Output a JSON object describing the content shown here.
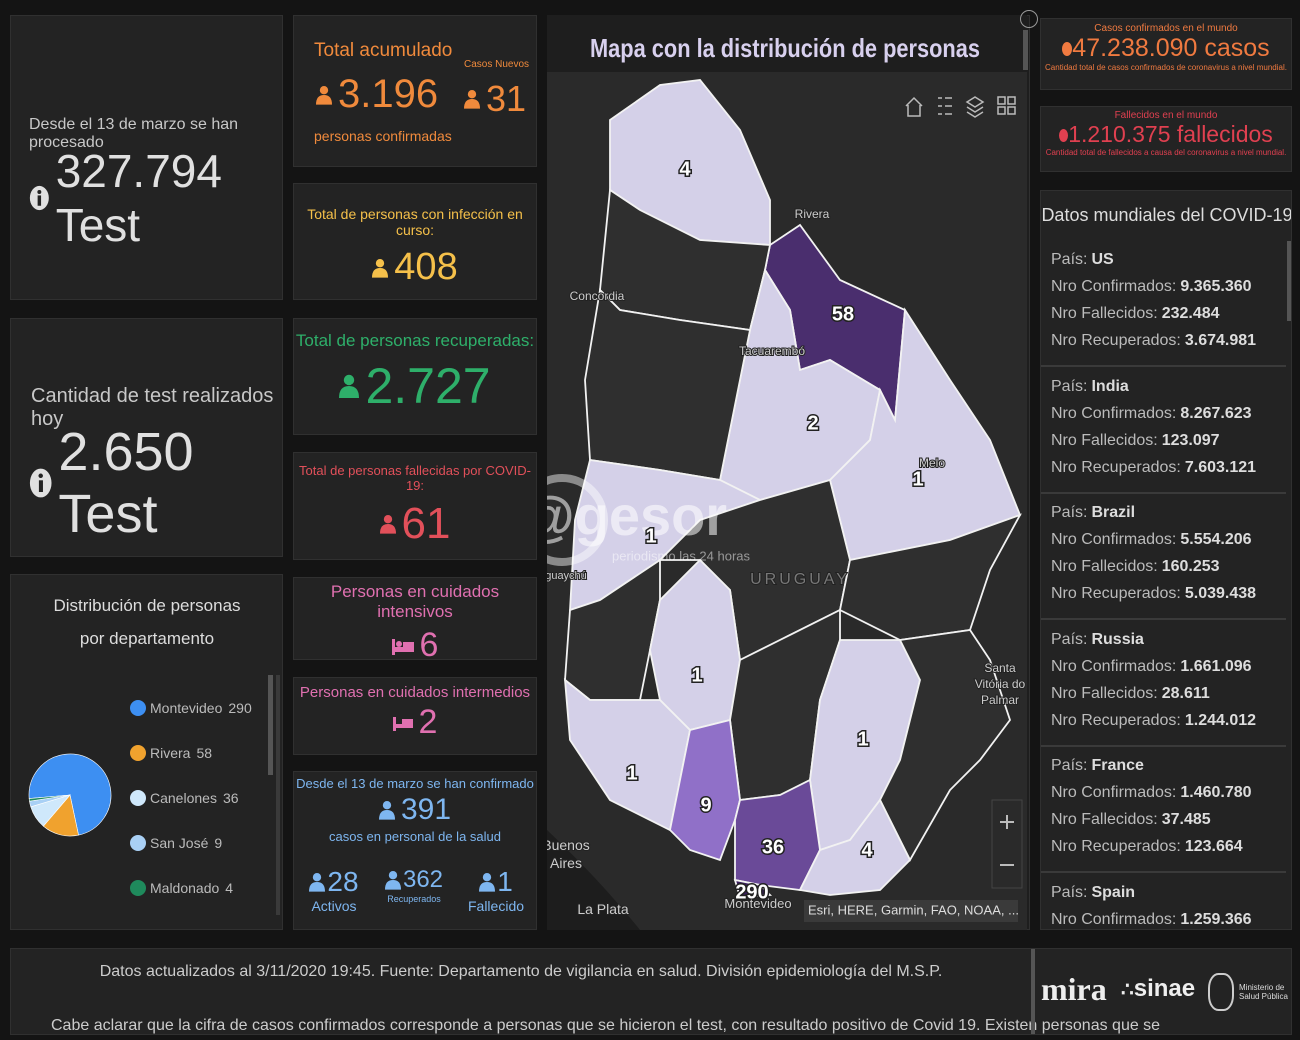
{
  "tests": {
    "caption": "Desde el 13 de marzo se han procesado",
    "value": "327.794 Test"
  },
  "today": {
    "caption": "Cantidad de test realizados hoy",
    "value": "2.650 Test"
  },
  "pie": {
    "title": "Distribución de personas por departamento",
    "items": [
      {
        "name": "Montevideo",
        "value": 290,
        "color": "#3d8ff2"
      },
      {
        "name": "Rivera",
        "value": 58,
        "color": "#f0a22e"
      },
      {
        "name": "Canelones",
        "value": 36,
        "color": "#cfe8fb"
      },
      {
        "name": "San José",
        "value": 9,
        "color": "#a9d0f5"
      },
      {
        "name": "Maldonado",
        "value": 4,
        "color": "#1f8a5c"
      }
    ]
  },
  "total": {
    "label": "Total acumulado",
    "value": "3.196",
    "sub": "personas confirmadas",
    "new_label": "Casos Nuevos",
    "new_value": "31"
  },
  "active": {
    "label": "Total de personas con infección en curso:",
    "value": "408"
  },
  "recovered": {
    "label": "Total de personas recuperadas:",
    "value": "2.727"
  },
  "deceased": {
    "label": "Total de personas fallecidas por COVID-19:",
    "value": "61"
  },
  "intensive": {
    "label": "Personas en cuidados intensivos",
    "value": "6"
  },
  "intermediate": {
    "label": "Personas en cuidados intermedios",
    "value": "2"
  },
  "health": {
    "caption": "Desde el 13 de marzo se han confirmado",
    "value": "391",
    "sub": "casos en personal de la salud",
    "items": [
      {
        "value": "28",
        "label": "Activos"
      },
      {
        "value": "362",
        "label": "Recuperados"
      },
      {
        "value": "1",
        "label": "Fallecido"
      }
    ]
  },
  "map": {
    "title": "Mapa con la distribución de personas",
    "regions": [
      "4",
      "58",
      "2",
      "1",
      "1",
      "1",
      "1",
      "9",
      "36",
      "1",
      "4",
      "290"
    ],
    "places": [
      "Rivera",
      "Concordia",
      "Tacuarembó",
      "Melo",
      "URUGUAY",
      "Santa Vitória do Palmar",
      "Buenos Aires",
      "La Plata",
      "Montevideo",
      "guaychú"
    ],
    "watermark": "@gesor",
    "watermark_sub": "periodismo las 24 horas",
    "attribution": "Esri, HERE, Garmin, FAO, NOAA, ..."
  },
  "world_cases": {
    "caption": "Casos confirmados en el mundo",
    "value": "47.238.090 casos",
    "note": "Cantidad total de casos confirmados de coronavirus a nivel mundial."
  },
  "world_deaths": {
    "caption": "Fallecidos en el mundo",
    "value": "1.210.375 fallecidos",
    "note": "Cantidad total de fallecidos a causa del coronavirus a nivel mundial."
  },
  "world_list": {
    "title": "Datos mundiales del COVID-19",
    "labels": [
      "País:",
      "Nro Confirmados:",
      "Nro Fallecidos:",
      "Nro Recuperados:"
    ],
    "countries": [
      {
        "name": "US",
        "confirmed": "9.365.360",
        "deaths": "232.484",
        "recovered": "3.674.981"
      },
      {
        "name": "India",
        "confirmed": "8.267.623",
        "deaths": "123.097",
        "recovered": "7.603.121"
      },
      {
        "name": "Brazil",
        "confirmed": "5.554.206",
        "deaths": "160.253",
        "recovered": "5.039.438"
      },
      {
        "name": "Russia",
        "confirmed": "1.661.096",
        "deaths": "28.611",
        "recovered": "1.244.012"
      },
      {
        "name": "France",
        "confirmed": "1.460.780",
        "deaths": "37.485",
        "recovered": "123.664"
      },
      {
        "name": "Spain",
        "confirmed": "1.259.366"
      }
    ]
  },
  "footer": {
    "line1": "Datos actualizados al 3/11/2020 19:45. Fuente: Departamento de vigilancia en salud. División epidemiología del M.S.P.",
    "line2": "Cabe aclarar que la cifra de casos confirmados corresponde a personas que se hicieron el test, con resultado positivo de Covid 19. Existen personas que se",
    "logos": [
      "mira",
      "sinae",
      "Ministerio de Salud Pública"
    ]
  }
}
